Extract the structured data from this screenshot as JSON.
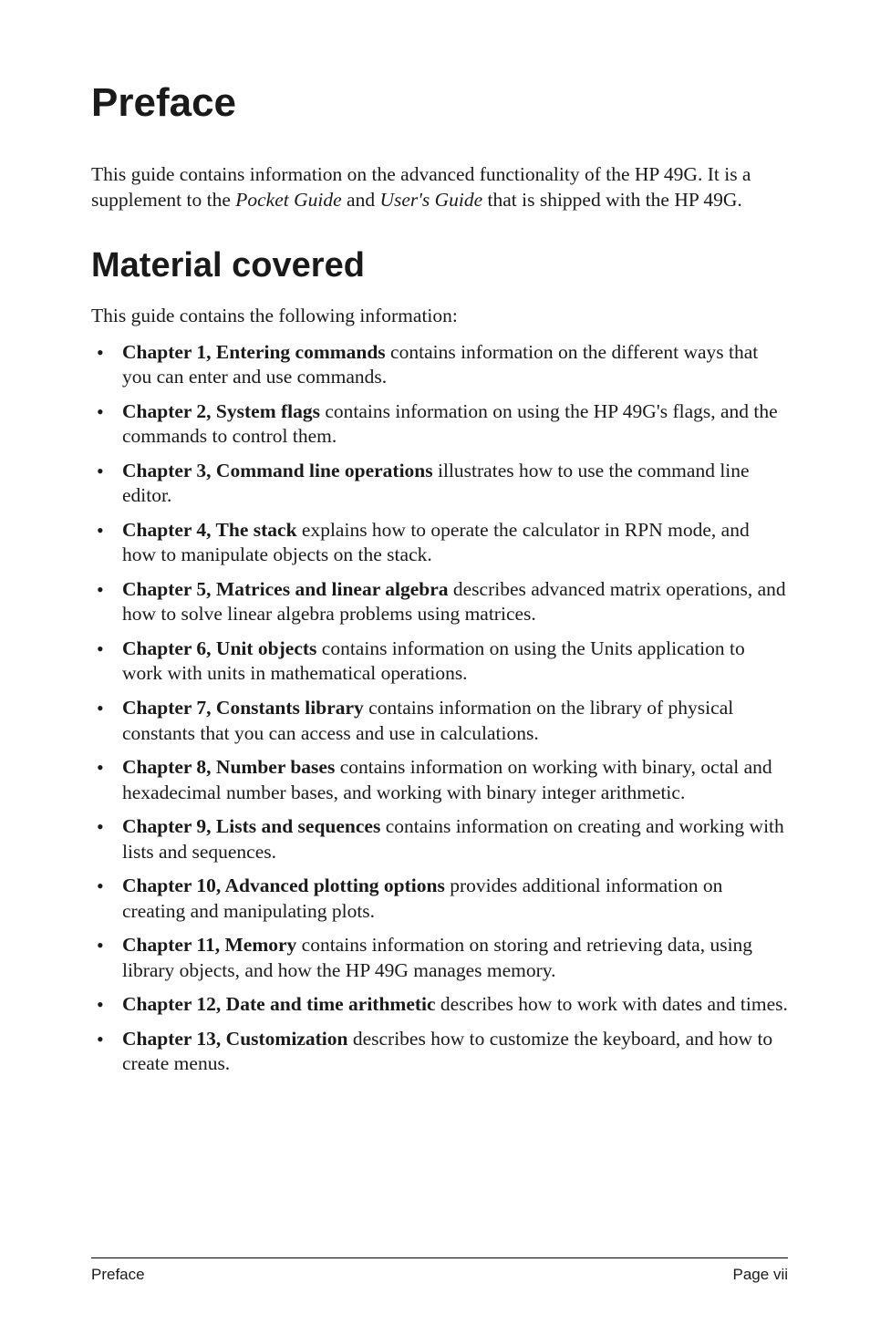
{
  "title": "Preface",
  "intro_parts": {
    "p1": "This guide contains information on the advanced functionality of the HP 49G. It is a supplement to the ",
    "i1": "Pocket Guide",
    "p2": " and ",
    "i2": "User's Guide",
    "p3": " that is shipped with the HP 49G."
  },
  "section_heading": "Material covered",
  "section_intro": "This guide contains the following information:",
  "chapters": [
    {
      "bold": "Chapter 1, Entering commands",
      "rest": " contains information on the different ways that you can enter and use commands."
    },
    {
      "bold": "Chapter 2, System flags",
      "rest": " contains information on using the HP 49G's flags, and the commands to control them."
    },
    {
      "bold": "Chapter 3, Command line operations",
      "rest": " illustrates how to use the command line editor."
    },
    {
      "bold": "Chapter 4, The stack",
      "rest": " explains how to operate the calculator in RPN mode, and how to manipulate objects on the stack."
    },
    {
      "bold": "Chapter 5, Matrices and linear algebra",
      "rest": " describes advanced matrix operations, and how to solve linear algebra problems using matrices."
    },
    {
      "bold": "Chapter 6, Unit objects",
      "rest": " contains information on using the Units application to work with units in mathematical operations."
    },
    {
      "bold": "Chapter 7, Constants library",
      "rest": " contains information on the library of physical constants that you can access and use in calculations."
    },
    {
      "bold": "Chapter 8, Number bases",
      "rest": " contains information on working with binary, octal and hexadecimal number bases, and working with binary integer arithmetic."
    },
    {
      "bold": "Chapter 9, Lists and sequences",
      "rest": " contains information on creating and working with lists and sequences."
    },
    {
      "bold": "Chapter 10, Advanced plotting options",
      "rest": " provides additional information on creating and manipulating plots."
    },
    {
      "bold": "Chapter 11, Memory",
      "rest": " contains information on storing and retrieving data, using library objects, and how the HP 49G manages memory."
    },
    {
      "bold": "Chapter 12, Date and time arithmetic",
      "rest": " describes how to work with dates and times."
    },
    {
      "bold": "Chapter 13, Customization",
      "rest": " describes how to customize the keyboard, and how to create menus."
    }
  ],
  "footer": {
    "left": "Preface",
    "right": "Page vii"
  }
}
